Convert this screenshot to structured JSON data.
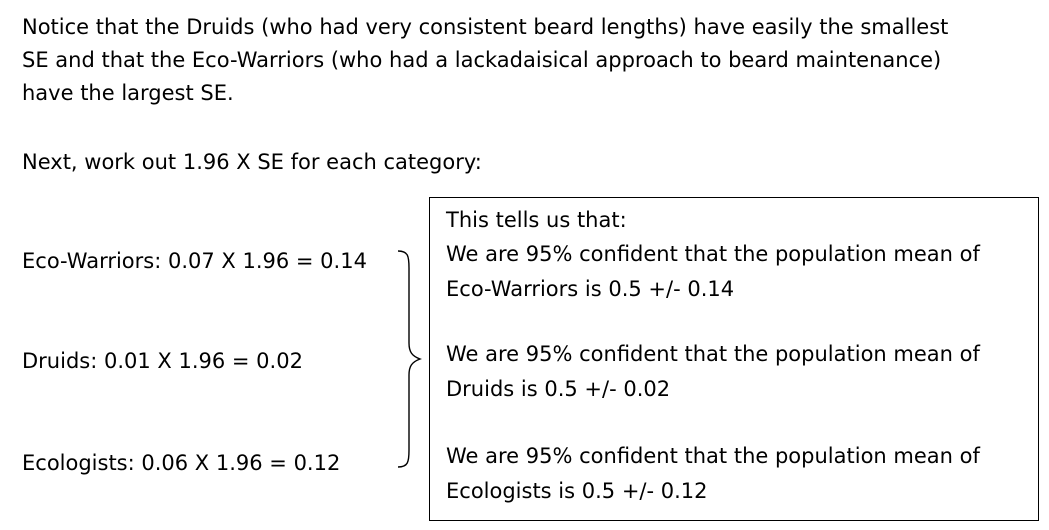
{
  "intro": {
    "lines": [
      "Notice that the Druids (who had very consistent beard lengths) have easily the smallest",
      "SE and that the Eco-Warriors (who had a lackadaisical approach to beard maintenance)",
      "have the largest SE."
    ]
  },
  "next_instruction": "Next, work out 1.96 X SE for each category:",
  "calculations": [
    {
      "text": "Eco-Warriors:  0.07 X 1.96 = 0.14"
    },
    {
      "text": "Druids:   0.01 X 1.96 = 0.02"
    },
    {
      "text": "Ecologists:  0.06 X 1.96 = 0.12"
    }
  ],
  "summary_box": {
    "heading": "This tells us that:",
    "statements": [
      {
        "line1": "We are 95% confident that the population mean of",
        "line2": "Eco-Warriors is 0.5 +/- 0.14"
      },
      {
        "line1": "We are 95% confident that the population mean of",
        "line2": "Druids is 0.5 +/- 0.02"
      },
      {
        "line1": "We are 95% confident that the population mean of",
        "line2": "Ecologists is 0.5 +/- 0.12"
      }
    ]
  }
}
